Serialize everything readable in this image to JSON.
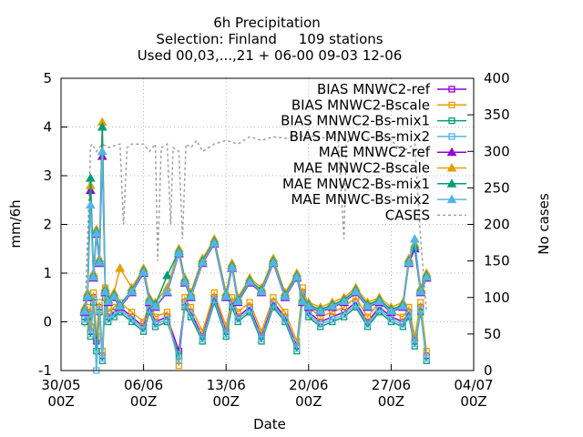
{
  "chart_data": {
    "type": "line",
    "title_lines": [
      "6h Precipitation",
      "Selection: Finland     109 stations",
      "Used 00,03,...,21 + 06-00 09-03 12-06"
    ],
    "xlabel": "Date",
    "ylabel": "mm/6h",
    "y2label": "No cases",
    "x_ticks": [
      {
        "day": 0,
        "l1": "30/05",
        "l2": "00Z"
      },
      {
        "day": 7,
        "l1": "06/06",
        "l2": "00Z"
      },
      {
        "day": 14,
        "l1": "13/06",
        "l2": "00Z"
      },
      {
        "day": 21,
        "l1": "20/06",
        "l2": "00Z"
      },
      {
        "day": 28,
        "l1": "27/06",
        "l2": "00Z"
      },
      {
        "day": 35,
        "l1": "04/07",
        "l2": "00Z"
      }
    ],
    "xlim": [
      0,
      35
    ],
    "ylim": [
      -1,
      5
    ],
    "y2lim": [
      0,
      400
    ],
    "y_ticks": [
      -1,
      0,
      1,
      2,
      3,
      4,
      5
    ],
    "y2_ticks": [
      0,
      50,
      100,
      150,
      200,
      250,
      300,
      350,
      400
    ],
    "grid": true,
    "legend_position": "top-right",
    "series": [
      {
        "name": "BIAS MNWC2-ref",
        "color": "#9400d3",
        "marker": "square",
        "axis": "y",
        "x": [
          2.0,
          2.25,
          2.5,
          2.75,
          3.0,
          3.25,
          3.5,
          3.75,
          4.0,
          4.5,
          5.0,
          6.0,
          7.0,
          7.5,
          8.0,
          9.0,
          10.0,
          10.5,
          11.0,
          12.0,
          13.0,
          14.0,
          14.5,
          15.0,
          16.0,
          17.0,
          18.0,
          19.0,
          20.0,
          20.5,
          21.0,
          22.0,
          23.0,
          24.0,
          25.0,
          26.0,
          27.0,
          28.0,
          29.0,
          29.5,
          30.0,
          30.5,
          31.0
        ],
        "values": [
          0.1,
          0.2,
          -0.2,
          0.5,
          -0.4,
          0.3,
          -0.7,
          0.6,
          0.1,
          0.2,
          0.3,
          0.1,
          -0.1,
          0.3,
          0.0,
          0.1,
          -0.6,
          0.4,
          0.2,
          -0.3,
          0.5,
          -0.2,
          0.4,
          0.1,
          0.3,
          -0.3,
          0.4,
          0.1,
          -0.5,
          0.6,
          0.2,
          0.0,
          0.1,
          0.2,
          0.4,
          0.0,
          0.3,
          0.1,
          0.0,
          0.2,
          -0.4,
          0.3,
          -0.7
        ]
      },
      {
        "name": "BIAS MNWC2-Bscale",
        "color": "#e69f00",
        "marker": "square",
        "axis": "y",
        "x": [
          2.0,
          2.25,
          2.5,
          2.75,
          3.0,
          3.25,
          3.5,
          3.75,
          4.0,
          4.5,
          5.0,
          6.0,
          7.0,
          7.5,
          8.0,
          9.0,
          10.0,
          10.5,
          11.0,
          12.0,
          13.0,
          14.0,
          14.5,
          15.0,
          16.0,
          17.0,
          18.0,
          19.0,
          20.0,
          20.5,
          21.0,
          22.0,
          23.0,
          24.0,
          25.0,
          26.0,
          27.0,
          28.0,
          29.0,
          29.5,
          30.0,
          30.5,
          31.0
        ],
        "values": [
          0.2,
          0.3,
          -0.1,
          0.6,
          -0.3,
          0.4,
          -0.6,
          0.7,
          0.2,
          0.3,
          0.4,
          0.2,
          0.0,
          0.4,
          0.1,
          0.2,
          -0.9,
          0.5,
          0.3,
          -0.2,
          0.6,
          -0.1,
          0.5,
          0.2,
          0.4,
          -0.2,
          0.5,
          0.2,
          -0.4,
          0.7,
          0.3,
          0.1,
          0.2,
          0.3,
          0.5,
          0.1,
          0.4,
          0.2,
          0.1,
          0.3,
          -0.3,
          0.4,
          -0.6
        ]
      },
      {
        "name": "BIAS MNWC2-Bs-mix1",
        "color": "#009e73",
        "marker": "square",
        "axis": "y",
        "x": [
          2.0,
          2.25,
          2.5,
          2.75,
          3.0,
          3.25,
          3.5,
          3.75,
          4.0,
          4.5,
          5.0,
          6.0,
          7.0,
          7.5,
          8.0,
          9.0,
          10.0,
          10.5,
          11.0,
          12.0,
          13.0,
          14.0,
          14.5,
          15.0,
          16.0,
          17.0,
          18.0,
          19.0,
          20.0,
          20.5,
          21.0,
          22.0,
          23.0,
          24.0,
          25.0,
          26.0,
          27.0,
          28.0,
          29.0,
          29.5,
          30.0,
          30.5,
          31.0
        ],
        "values": [
          0.0,
          0.1,
          -0.3,
          0.4,
          -0.6,
          0.2,
          -0.8,
          0.5,
          0.0,
          0.1,
          0.2,
          0.0,
          -0.2,
          0.2,
          -0.1,
          0.0,
          -0.7,
          0.3,
          0.1,
          -0.4,
          0.4,
          -0.3,
          0.3,
          0.0,
          0.2,
          -0.4,
          0.3,
          0.0,
          -0.6,
          0.5,
          0.1,
          -0.1,
          0.0,
          0.1,
          0.3,
          -0.1,
          0.2,
          0.0,
          -0.1,
          0.1,
          -0.5,
          0.2,
          -0.8
        ]
      },
      {
        "name": "BIAS MNWC-Bs-mix2",
        "color": "#56b4e9",
        "marker": "square",
        "axis": "y",
        "x": [
          2.0,
          2.25,
          2.5,
          2.75,
          3.0,
          3.25,
          3.5,
          3.75,
          4.0,
          4.5,
          5.0,
          6.0,
          7.0,
          7.5,
          8.0,
          9.0,
          10.0,
          10.5,
          11.0,
          12.0,
          13.0,
          14.0,
          14.5,
          15.0,
          16.0,
          17.0,
          18.0,
          19.0,
          20.0,
          20.5,
          21.0,
          22.0,
          23.0,
          24.0,
          25.0,
          26.0,
          27.0,
          28.0,
          29.0,
          29.5,
          30.0,
          30.5,
          31.0
        ],
        "values": [
          0.05,
          0.15,
          -0.25,
          0.45,
          -1.0,
          0.25,
          -0.75,
          0.55,
          0.05,
          0.15,
          0.25,
          0.05,
          -0.15,
          0.25,
          -0.05,
          0.05,
          -0.8,
          0.35,
          0.15,
          -0.35,
          0.45,
          -0.25,
          0.35,
          0.05,
          0.25,
          -0.35,
          0.35,
          0.05,
          -0.55,
          0.55,
          0.15,
          -0.05,
          0.05,
          0.15,
          0.35,
          -0.05,
          0.25,
          0.05,
          -0.05,
          0.15,
          -0.45,
          0.25,
          -0.75
        ]
      },
      {
        "name": "MAE MNWC2-ref",
        "color": "#9400d3",
        "marker": "triangle",
        "axis": "y",
        "x": [
          2.0,
          2.25,
          2.5,
          2.75,
          3.0,
          3.25,
          3.5,
          3.75,
          4.0,
          4.5,
          5.0,
          6.0,
          7.0,
          7.5,
          8.0,
          9.0,
          10.0,
          10.5,
          11.0,
          12.0,
          13.0,
          14.0,
          14.5,
          15.0,
          16.0,
          17.0,
          18.0,
          19.0,
          20.0,
          20.5,
          21.0,
          22.0,
          23.0,
          24.0,
          25.0,
          26.0,
          27.0,
          28.0,
          29.0,
          29.5,
          30.0,
          30.5,
          31.0
        ],
        "values": [
          0.2,
          0.5,
          2.7,
          0.9,
          1.8,
          1.2,
          3.4,
          0.6,
          0.4,
          0.5,
          0.3,
          0.6,
          1.0,
          0.4,
          0.3,
          0.6,
          1.4,
          0.8,
          0.5,
          1.2,
          1.6,
          0.5,
          1.1,
          0.4,
          0.8,
          0.6,
          1.2,
          0.5,
          0.9,
          0.4,
          0.3,
          0.2,
          0.3,
          0.4,
          0.6,
          0.3,
          0.4,
          0.2,
          0.3,
          1.2,
          1.5,
          0.6,
          0.9
        ]
      },
      {
        "name": "MAE MNWC2-Bscale",
        "color": "#e69f00",
        "marker": "triangle",
        "axis": "y",
        "x": [
          2.0,
          2.25,
          2.5,
          2.75,
          3.0,
          3.25,
          3.5,
          3.75,
          4.0,
          4.5,
          5.0,
          6.0,
          7.0,
          7.5,
          8.0,
          9.0,
          10.0,
          10.5,
          11.0,
          12.0,
          13.0,
          14.0,
          14.5,
          15.0,
          16.0,
          17.0,
          18.0,
          19.0,
          20.0,
          20.5,
          21.0,
          22.0,
          23.0,
          24.0,
          25.0,
          26.0,
          27.0,
          28.0,
          29.0,
          29.5,
          30.0,
          30.5,
          31.0
        ],
        "values": [
          0.3,
          0.6,
          2.8,
          1.0,
          1.9,
          1.3,
          4.1,
          0.7,
          0.5,
          0.6,
          1.1,
          0.7,
          1.1,
          0.5,
          0.4,
          0.7,
          1.5,
          0.9,
          0.6,
          1.3,
          1.7,
          0.6,
          1.2,
          0.5,
          0.9,
          0.7,
          1.3,
          0.6,
          1.0,
          0.5,
          0.4,
          0.3,
          0.4,
          0.5,
          0.7,
          0.4,
          0.5,
          0.3,
          0.4,
          1.3,
          1.6,
          0.7,
          1.0
        ]
      },
      {
        "name": "MAE MNWC2-Bs-mix1",
        "color": "#009e73",
        "marker": "triangle",
        "axis": "y",
        "x": [
          2.0,
          2.25,
          2.5,
          2.75,
          3.0,
          3.25,
          3.5,
          3.75,
          4.0,
          4.5,
          5.0,
          6.0,
          7.0,
          7.5,
          8.0,
          9.0,
          10.0,
          10.5,
          11.0,
          12.0,
          13.0,
          14.0,
          14.5,
          15.0,
          16.0,
          17.0,
          18.0,
          19.0,
          20.0,
          20.5,
          21.0,
          22.0,
          23.0,
          24.0,
          25.0,
          26.0,
          27.0,
          28.0,
          29.0,
          29.5,
          30.0,
          30.5,
          31.0
        ],
        "values": [
          0.25,
          0.55,
          2.95,
          0.95,
          1.85,
          1.25,
          4.0,
          0.65,
          0.45,
          0.55,
          0.35,
          0.65,
          1.05,
          0.45,
          0.35,
          0.95,
          1.45,
          0.85,
          0.55,
          1.25,
          1.65,
          0.55,
          1.15,
          0.45,
          0.85,
          0.65,
          1.25,
          0.55,
          0.95,
          0.45,
          0.35,
          0.25,
          0.35,
          0.45,
          0.65,
          0.35,
          0.45,
          0.25,
          0.35,
          1.25,
          1.55,
          0.65,
          0.95
        ]
      },
      {
        "name": "MAE MNWC-Bs-mix2",
        "color": "#56b4e9",
        "marker": "triangle",
        "axis": "y",
        "x": [
          2.0,
          2.25,
          2.5,
          2.75,
          3.0,
          3.25,
          3.5,
          3.75,
          4.0,
          4.5,
          5.0,
          6.0,
          7.0,
          7.5,
          8.0,
          9.0,
          10.0,
          10.5,
          11.0,
          12.0,
          13.0,
          14.0,
          14.5,
          15.0,
          16.0,
          17.0,
          18.0,
          19.0,
          20.0,
          20.5,
          21.0,
          22.0,
          23.0,
          24.0,
          25.0,
          26.0,
          27.0,
          28.0,
          29.0,
          29.5,
          30.0,
          30.5,
          31.0
        ],
        "values": [
          0.22,
          0.52,
          2.4,
          0.92,
          1.82,
          1.22,
          3.5,
          0.62,
          0.42,
          0.52,
          0.32,
          0.62,
          1.02,
          0.42,
          0.32,
          0.62,
          1.42,
          0.82,
          0.52,
          1.22,
          1.62,
          0.52,
          1.12,
          0.42,
          0.82,
          0.62,
          1.22,
          0.52,
          0.92,
          0.42,
          0.32,
          0.22,
          0.32,
          0.42,
          0.62,
          0.32,
          0.42,
          0.22,
          0.32,
          1.22,
          1.7,
          0.62,
          0.92
        ]
      },
      {
        "name": "CASES",
        "color": "#a0a0a0",
        "marker": "none",
        "dash": true,
        "axis": "y2",
        "x": [
          2.0,
          2.5,
          2.6,
          3.0,
          3.5,
          4.0,
          5.0,
          5.3,
          5.6,
          6.0,
          7.0,
          7.5,
          8.0,
          8.2,
          8.5,
          9.0,
          9.3,
          9.5,
          10.0,
          10.3,
          10.6,
          11.0,
          11.5,
          12.0,
          13.0,
          14.0,
          15.0,
          16.0,
          17.0,
          18.0,
          19.0,
          20.0,
          21.0,
          22.0,
          23.0,
          23.5,
          24.0,
          24.2,
          24.5,
          25.0,
          26.0,
          27.0,
          28.0,
          29.0,
          30.0,
          30.5,
          31.0
        ],
        "values": [
          60,
          305,
          310,
          300,
          310,
          305,
          310,
          200,
          305,
          310,
          310,
          300,
          310,
          150,
          305,
          310,
          200,
          305,
          300,
          180,
          310,
          305,
          315,
          300,
          310,
          315,
          310,
          320,
          315,
          320,
          318,
          320,
          322,
          318,
          320,
          315,
          180,
          310,
          318,
          320,
          318,
          320,
          315,
          300,
          310,
          180,
          80
        ]
      }
    ]
  }
}
